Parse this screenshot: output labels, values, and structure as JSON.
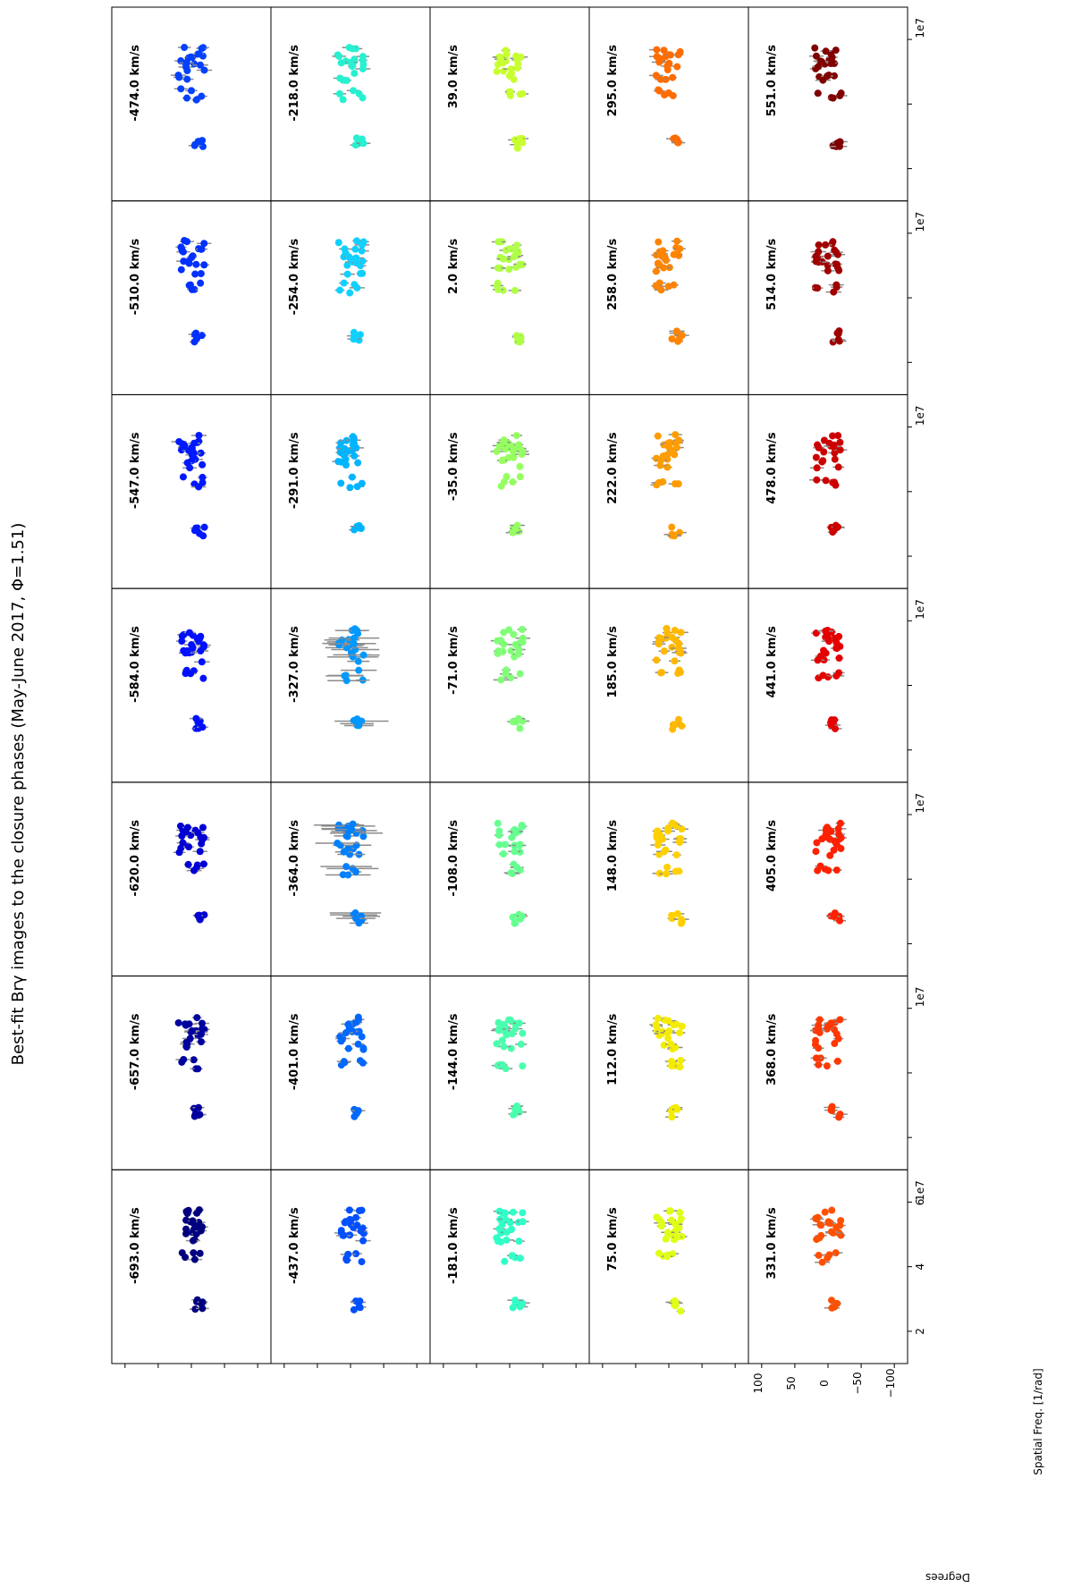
{
  "chart_data": {
    "type": "scatter",
    "orientation": "rotated 90 degrees counter-clockwise",
    "title": "Best-fit Brγ images to the closure phases (May-June 2017, Φ=1.51)",
    "xlabel": "Spatial Freq. [1/rad]",
    "xunit_exponent": "1e7",
    "ylabel": "Degrees",
    "xlim": [
      1.0,
      7.0
    ],
    "ylim": [
      -120,
      120
    ],
    "xticks": [
      2,
      4,
      6
    ],
    "yticks": [
      100,
      50,
      0,
      -50,
      -100
    ],
    "ytick_labels": [
      "100",
      "50",
      "0",
      "−50",
      "−100"
    ],
    "grid": false,
    "layout": {
      "columns": 7,
      "rows": 5
    },
    "panels": [
      [
        "-693.0 km/s",
        "-657.0 km/s",
        "-620.0 km/s",
        "-584.0 km/s",
        "-547.0 km/s",
        "-510.0 km/s",
        "-474.0 km/s"
      ],
      [
        "-437.0 km/s",
        "-401.0 km/s",
        "-364.0 km/s",
        "-327.0 km/s",
        "-291.0 km/s",
        "-254.0 km/s",
        "-218.0 km/s"
      ],
      [
        "-181.0 km/s",
        "-144.0 km/s",
        "-108.0 km/s",
        "-71.0 km/s",
        "-35.0 km/s",
        "2.0 km/s",
        "39.0 km/s"
      ],
      [
        "75.0 km/s",
        "112.0 km/s",
        "148.0 km/s",
        "185.0 km/s",
        "222.0 km/s",
        "258.0 km/s",
        "295.0 km/s"
      ],
      [
        "331.0 km/s",
        "368.0 km/s",
        "405.0 km/s",
        "441.0 km/s",
        "478.0 km/s",
        "514.0 km/s",
        "551.0 km/s"
      ]
    ],
    "panel_colors": [
      [
        "#00007f",
        "#00009f",
        "#0000d4",
        "#0010ff",
        "#0018ff",
        "#0030ff",
        "#0040ff"
      ],
      [
        "#0050ff",
        "#0068ff",
        "#0080ff",
        "#0098ff",
        "#00b4ff",
        "#10d0ff",
        "#26f0d0"
      ],
      [
        "#30ffc7",
        "#4affad",
        "#66ff90",
        "#80ff77",
        "#96ff60",
        "#b0ff47",
        "#c7ff30"
      ],
      [
        "#e0ff16",
        "#f4ec00",
        "#ffd000",
        "#ffb800",
        "#ff9c00",
        "#ff8400",
        "#ff6c00"
      ],
      [
        "#ff5000",
        "#ff3800",
        "#ff2000",
        "#e50000",
        "#cc0000",
        "#a00000",
        "#800000"
      ]
    ],
    "error_bar_color": "#8c8c8c",
    "spatial_freq_groups": [
      2.8,
      4.3,
      4.9,
      5.2,
      5.4,
      5.6
    ],
    "closure_phase_range_deg": [
      -20,
      20
    ]
  }
}
